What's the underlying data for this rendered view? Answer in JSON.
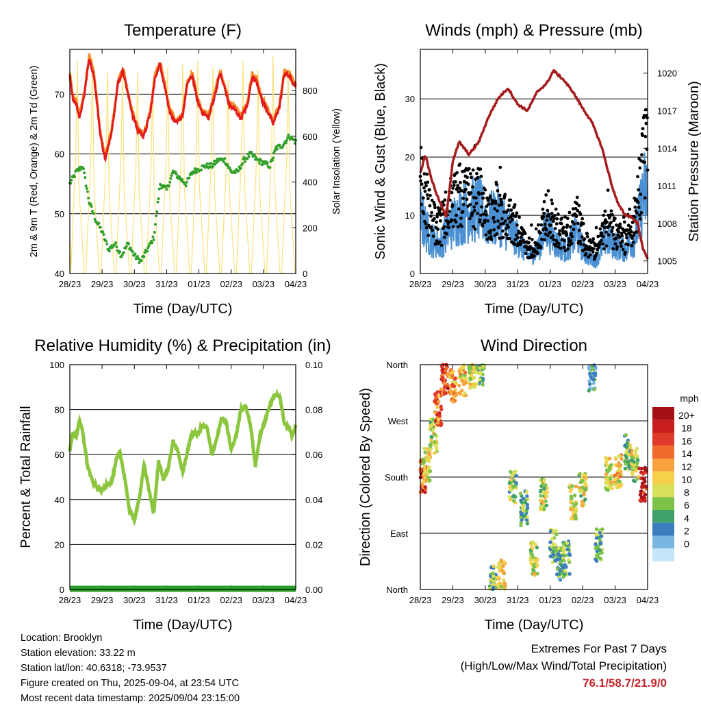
{
  "info": {
    "location": "Location: Brooklyn",
    "elevation": "Station elevation: 33.22 m",
    "latlon": "Station lat/lon: 40.6318; -73.9537",
    "created": "Figure created on Thu, 2025-09-04, at 23:54 UTC",
    "latest": "Most recent data timestamp: 2025/09/04 23:15:00"
  },
  "extremes": {
    "title": "Extremes For Past 7 Days",
    "subtitle": "(High/Low/Max Wind/Total Precipitation)",
    "values": "76.1/58.7/21.9/0"
  },
  "colors": {
    "temp2m": "#e31a1c",
    "temp9m": "#f58d2a",
    "dewpoint": "#33a02c",
    "solar": "#fbe27a",
    "wind": "#4a90d2",
    "gust": "#000000",
    "pressure": "#a51c1c",
    "rh": "#8cc63f",
    "precip": "#2a9d2a"
  },
  "chart_data": [
    {
      "type": "line",
      "title": "Temperature (F)",
      "xlabel": "Time (Day/UTC)",
      "ylabel": "2m & 9m T (Red, Orange) & 2m Td (Green)",
      "ylabel_right": "Solar Insolation (Yellow)",
      "x_ticks": [
        "28/23",
        "29/23",
        "30/23",
        "31/23",
        "01/23",
        "02/23",
        "03/23",
        "04/23"
      ],
      "ylim": [
        40,
        77.5
      ],
      "y_ticks": [
        40,
        50,
        60,
        70
      ],
      "ylim_right": [
        0,
        980
      ],
      "y_ticks_right": [
        0,
        200,
        400,
        600,
        800
      ],
      "grid": "horizontal",
      "series": [
        {
          "name": "2m T",
          "color": "red",
          "x": [
            0,
            0.1,
            0.2,
            0.3,
            0.45,
            0.6,
            0.75,
            0.85,
            0.95,
            1.1,
            1.3,
            1.5,
            1.65,
            1.8,
            1.95,
            2.1,
            2.3,
            2.5,
            2.65,
            2.8,
            2.95,
            3.1,
            3.3,
            3.5,
            3.65,
            3.8,
            3.95,
            4.1,
            4.3,
            4.5,
            4.65,
            4.8,
            4.95,
            5.1,
            5.3,
            5.5,
            5.65,
            5.8,
            5.95,
            6.1,
            6.3,
            6.5,
            6.65,
            6.8,
            6.95,
            7.0
          ],
          "values": [
            73.2,
            69,
            68.5,
            66,
            70,
            76,
            73,
            68,
            63,
            59,
            64,
            72,
            74,
            70,
            66.5,
            64,
            63,
            67,
            73,
            75,
            71,
            67,
            65,
            66.5,
            72,
            73,
            69,
            67,
            66,
            70,
            73.5,
            71,
            68,
            67.5,
            66,
            68,
            73,
            72,
            69,
            67.5,
            65,
            68,
            73.5,
            73,
            71.5,
            71.5
          ]
        },
        {
          "name": "9m T",
          "color": "orange",
          "x": [
            0,
            0.5,
            1.0,
            1.5,
            2.0,
            2.5,
            3.0,
            3.5,
            4.0,
            4.5,
            5.0,
            5.5,
            6.0,
            6.5,
            7.0
          ],
          "values": [
            73,
            75.5,
            63.5,
            72.5,
            66,
            67.5,
            73,
            66.5,
            68,
            70.5,
            67,
            68.5,
            67,
            68.5,
            71.8
          ]
        },
        {
          "name": "2m Td",
          "color": "green",
          "x": [
            0,
            0.2,
            0.4,
            0.6,
            0.8,
            1.0,
            1.2,
            1.4,
            1.6,
            1.8,
            2.0,
            2.2,
            2.4,
            2.6,
            2.8,
            3.0,
            3.2,
            3.4,
            3.6,
            3.8,
            4.0,
            4.2,
            4.4,
            4.6,
            4.8,
            5.0,
            5.2,
            5.4,
            5.6,
            5.8,
            6.0,
            6.2,
            6.4,
            6.6,
            6.8,
            7.0
          ],
          "values": [
            55,
            57,
            58,
            52,
            49,
            47,
            44,
            45,
            43,
            45,
            43,
            42,
            44,
            46,
            55,
            54,
            57,
            56,
            55,
            57,
            57.5,
            58,
            58,
            59,
            59,
            57,
            57,
            59,
            60,
            59,
            58.5,
            58,
            61,
            61.5,
            63,
            62
          ]
        },
        {
          "name": "Solar",
          "color": "yellow",
          "axis": "right",
          "daily_peak": [
            930,
            945,
            880,
            900,
            880,
            840,
            905,
            920,
            930,
            905,
            850,
            930,
            890,
            950,
            900
          ]
        }
      ]
    },
    {
      "type": "scatter",
      "title": "Winds (mph) & Pressure (mb)",
      "xlabel": "Time (Day/UTC)",
      "ylabel": "Sonic Wind & Gust (Blue, Black)",
      "ylabel_right": "Station Pressure (Maroon)",
      "x_ticks": [
        "28/23",
        "29/23",
        "30/23",
        "31/23",
        "01/23",
        "02/23",
        "03/23",
        "04/23"
      ],
      "ylim": [
        0,
        38.5
      ],
      "y_ticks": [
        0,
        10,
        20,
        30
      ],
      "ylim_right": [
        1004,
        1021.9
      ],
      "y_ticks_right": [
        1005,
        1008,
        1011,
        1014,
        1017,
        1020
      ],
      "grid": "horizontal",
      "series": [
        {
          "name": "Sonic Wind",
          "color": "blue",
          "x": [
            0,
            0.3,
            0.6,
            0.9,
            1.2,
            1.5,
            1.8,
            2.1,
            2.4,
            2.7,
            3.0,
            3.3,
            3.6,
            3.9,
            4.2,
            4.5,
            4.8,
            5.1,
            5.4,
            5.7,
            6.0,
            6.3,
            6.6,
            6.9,
            7.0
          ],
          "values": [
            10,
            6,
            5,
            8,
            10,
            11,
            11,
            9,
            10,
            8,
            6,
            3,
            4,
            8,
            5,
            4,
            7,
            3,
            2,
            6,
            5,
            4,
            6,
            14,
            13
          ]
        },
        {
          "name": "Gust",
          "color": "black",
          "x": [
            0,
            0.3,
            0.6,
            0.9,
            1.2,
            1.5,
            1.8,
            2.1,
            2.4,
            2.7,
            3.0,
            3.3,
            3.6,
            3.9,
            4.2,
            4.5,
            4.8,
            5.1,
            5.4,
            5.7,
            6.0,
            6.3,
            6.6,
            6.9,
            7.0
          ],
          "values": [
            24,
            14,
            11,
            16,
            20,
            18,
            19,
            13,
            15,
            14,
            11,
            6,
            8,
            15,
            11,
            9,
            14,
            7,
            6,
            11,
            10,
            8,
            13,
            28,
            30
          ]
        },
        {
          "name": "Station Pressure",
          "color": "maroon",
          "axis": "right",
          "x": [
            0,
            0.15,
            0.35,
            0.55,
            0.8,
            1.0,
            1.2,
            1.5,
            1.8,
            2.1,
            2.4,
            2.7,
            3.0,
            3.3,
            3.6,
            3.9,
            4.1,
            4.4,
            4.7,
            5.0,
            5.3,
            5.6,
            5.9,
            6.1,
            6.3,
            6.5,
            6.7,
            6.85,
            7.0
          ],
          "values": [
            1012,
            1013.5,
            1011.5,
            1010,
            1008.5,
            1013,
            1014.5,
            1013.5,
            1014.5,
            1016.5,
            1018,
            1018.8,
            1017.5,
            1017,
            1018.5,
            1019.2,
            1020.2,
            1019.5,
            1018.5,
            1017.2,
            1016,
            1014,
            1011,
            1009.5,
            1008.7,
            1008.5,
            1008,
            1006,
            1005.2
          ]
        }
      ]
    },
    {
      "type": "line",
      "title": "Relative Humidity (%) & Precipitation (in)",
      "xlabel": "Time (Day/UTC)",
      "ylabel": "Percent & Total Rainfall",
      "x_ticks": [
        "28/23",
        "29/23",
        "30/23",
        "31/23",
        "01/23",
        "02/23",
        "03/23",
        "04/23"
      ],
      "ylim": [
        0,
        100
      ],
      "y_ticks": [
        0,
        20,
        40,
        60,
        80,
        100
      ],
      "ylim_right": [
        0,
        0.1
      ],
      "y_ticks_right": [
        "0.00",
        "0.02",
        "0.04",
        "0.06",
        "0.08",
        "0.10"
      ],
      "grid": "horizontal",
      "series": [
        {
          "name": "RH",
          "color": "lightgreen",
          "x": [
            0,
            0.1,
            0.2,
            0.3,
            0.4,
            0.55,
            0.7,
            0.85,
            1.0,
            1.15,
            1.3,
            1.45,
            1.55,
            1.7,
            1.85,
            2.0,
            2.15,
            2.3,
            2.45,
            2.6,
            2.75,
            2.9,
            3.05,
            3.2,
            3.35,
            3.5,
            3.65,
            3.8,
            3.95,
            4.1,
            4.25,
            4.4,
            4.55,
            4.7,
            4.85,
            5.0,
            5.15,
            5.3,
            5.45,
            5.6,
            5.75,
            5.9,
            6.05,
            6.2,
            6.35,
            6.5,
            6.65,
            6.8,
            6.9,
            7.0
          ],
          "values": [
            62,
            70,
            68,
            75,
            70,
            55,
            48,
            45,
            44,
            47,
            48,
            58,
            61,
            50,
            35,
            31,
            40,
            56,
            44,
            34,
            57,
            49,
            54,
            66,
            61,
            52,
            62,
            70,
            69,
            73,
            72,
            60,
            67,
            76,
            74,
            62,
            68,
            80,
            82,
            73,
            55,
            69,
            75,
            82,
            87,
            86,
            74,
            72,
            68,
            73
          ]
        },
        {
          "name": "Precipitation",
          "color": "green",
          "axis": "right",
          "x": [
            0,
            7.0
          ],
          "values": [
            0,
            0
          ]
        }
      ]
    },
    {
      "type": "scatter",
      "title": "Wind Direction",
      "xlabel": "Time (Day/UTC)",
      "ylabel": "Direction (Colored By Speed)",
      "x_ticks": [
        "28/23",
        "29/23",
        "30/23",
        "31/23",
        "01/23",
        "02/23",
        "03/23",
        "04/23"
      ],
      "y_ticks": [
        "North",
        "East",
        "South",
        "West",
        "North"
      ],
      "ylim": [
        0,
        360
      ],
      "grid": "horizontal",
      "legend": {
        "title": "mph",
        "placement": "right",
        "labels": [
          "20+",
          "18",
          "16",
          "14",
          "12",
          "10",
          "8",
          "6",
          "4",
          "2",
          "0"
        ],
        "colors": [
          "#a50f15",
          "#c81e1e",
          "#e03a2a",
          "#f06a2c",
          "#f7a23c",
          "#f6d04a",
          "#d8e05a",
          "#7fc24a",
          "#3fa06a",
          "#3b7dbf",
          "#7ab6e0",
          "#c5e6f8"
        ]
      },
      "clusters": [
        {
          "x": 0.07,
          "dir": 180,
          "speed": 16
        },
        {
          "x": 0.2,
          "dir": 200,
          "speed": 9
        },
        {
          "x": 0.4,
          "dir": 245,
          "speed": 8
        },
        {
          "x": 0.55,
          "dir": 290,
          "speed": 14
        },
        {
          "x": 0.75,
          "dir": 340,
          "speed": 16
        },
        {
          "x": 1.0,
          "dir": 325,
          "speed": 12
        },
        {
          "x": 1.3,
          "dir": 338,
          "speed": 10
        },
        {
          "x": 1.6,
          "dir": 350,
          "speed": 8
        },
        {
          "x": 1.85,
          "dir": 355,
          "speed": 5
        },
        {
          "x": 2.25,
          "dir": 10,
          "speed": 6
        },
        {
          "x": 2.5,
          "dir": 20,
          "speed": 10
        },
        {
          "x": 2.85,
          "dir": 165,
          "speed": 6
        },
        {
          "x": 3.2,
          "dir": 130,
          "speed": 5
        },
        {
          "x": 3.5,
          "dir": 50,
          "speed": 8
        },
        {
          "x": 3.8,
          "dir": 150,
          "speed": 8
        },
        {
          "x": 4.1,
          "dir": 70,
          "speed": 5
        },
        {
          "x": 4.3,
          "dir": 40,
          "speed": 4
        },
        {
          "x": 4.5,
          "dir": 50,
          "speed": 5
        },
        {
          "x": 4.7,
          "dir": 140,
          "speed": 9
        },
        {
          "x": 5.0,
          "dir": 160,
          "speed": 8
        },
        {
          "x": 5.3,
          "dir": 345,
          "speed": 3
        },
        {
          "x": 5.5,
          "dir": 70,
          "speed": 5
        },
        {
          "x": 5.8,
          "dir": 185,
          "speed": 9
        },
        {
          "x": 6.1,
          "dir": 190,
          "speed": 10
        },
        {
          "x": 6.4,
          "dir": 220,
          "speed": 6
        },
        {
          "x": 6.6,
          "dir": 200,
          "speed": 8
        },
        {
          "x": 6.85,
          "dir": 168,
          "speed": 18
        }
      ]
    }
  ]
}
